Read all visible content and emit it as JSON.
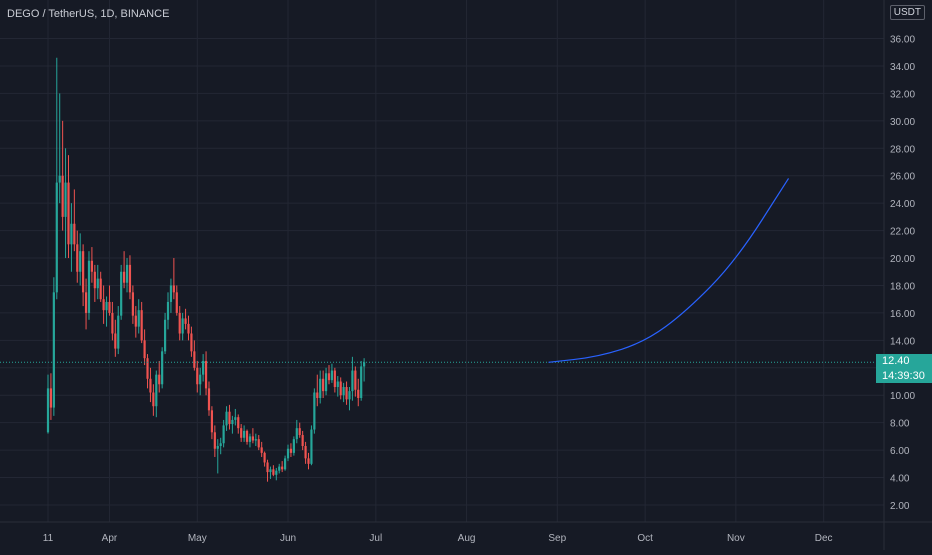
{
  "header": {
    "title": "DEGO / TetherUS, 1D, BINANCE",
    "currency_badge": "USDT"
  },
  "last_price": {
    "value": "12.40",
    "countdown": "14:39:30"
  },
  "colors": {
    "background": "#161a25",
    "grid": "#232734",
    "axis_text": "#b2b5be",
    "up": "#26a69a",
    "down": "#ef5350",
    "projection": "#2962ff",
    "price_line": "#26a69a"
  },
  "chart_data": {
    "type": "candlestick",
    "title": "DEGO / TetherUS, 1D, BINANCE",
    "exchange": "BINANCE",
    "interval": "1D",
    "y_axis": {
      "side": "right",
      "ticks": [
        2,
        4,
        6,
        8,
        10,
        12,
        14,
        16,
        18,
        20,
        22,
        24,
        26,
        28,
        30,
        32,
        34,
        36
      ],
      "tick_labels": [
        "2.00",
        "4.00",
        "6.00",
        "8.00",
        "10.00",
        "12.00",
        "14.00",
        "16.00",
        "18.00",
        "20.00",
        "22.00",
        "24.00",
        "26.00",
        "28.00",
        "30.00",
        "32.00",
        "34.00",
        "36.00"
      ]
    },
    "x_axis": {
      "ticks": [
        "2021-03-11",
        "2021-04-01",
        "2021-05-01",
        "2021-06-01",
        "2021-07-01",
        "2021-08-01",
        "2021-09-01",
        "2021-10-01",
        "2021-11-01",
        "2021-12-01"
      ],
      "tick_labels": [
        "11",
        "Apr",
        "May",
        "Jun",
        "Jul",
        "Aug",
        "Sep",
        "Oct",
        "Nov",
        "Dec"
      ]
    },
    "series": [
      {
        "kind": "ohlc_daily",
        "start_date": "2021-03-11",
        "candles": [
          [
            7.3,
            11.5,
            7.2,
            10.5
          ],
          [
            10.5,
            11.6,
            8.2,
            9.1
          ],
          [
            9.1,
            18.6,
            8.5,
            17.5
          ],
          [
            17.5,
            34.6,
            17.0,
            25.5
          ],
          [
            25.5,
            32.0,
            24.0,
            26.0
          ],
          [
            26.0,
            30.0,
            22.0,
            23.0
          ],
          [
            23.0,
            28.0,
            20.0,
            25.5
          ],
          [
            25.5,
            27.5,
            20.0,
            21.0
          ],
          [
            21.0,
            24.0,
            19.0,
            22.5
          ],
          [
            22.5,
            25.0,
            20.5,
            21.0
          ],
          [
            21.0,
            22.0,
            18.2,
            19.0
          ],
          [
            19.0,
            21.8,
            18.0,
            20.5
          ],
          [
            20.5,
            21.0,
            16.5,
            17.5
          ],
          [
            17.5,
            18.5,
            14.8,
            16.0
          ],
          [
            16.0,
            20.5,
            15.5,
            19.8
          ],
          [
            19.8,
            20.8,
            18.2,
            19.0
          ],
          [
            19.0,
            19.5,
            16.8,
            17.8
          ],
          [
            17.8,
            19.5,
            17.0,
            18.5
          ],
          [
            18.5,
            19.0,
            16.8,
            17.0
          ],
          [
            17.0,
            18.0,
            15.2,
            16.2
          ],
          [
            16.2,
            17.2,
            15.0,
            16.8
          ],
          [
            16.8,
            18.0,
            15.8,
            16.0
          ],
          [
            16.0,
            16.8,
            14.0,
            14.5
          ],
          [
            14.5,
            15.5,
            12.8,
            13.4
          ],
          [
            13.4,
            16.5,
            13.0,
            15.8
          ],
          [
            15.8,
            19.5,
            15.5,
            19.0
          ],
          [
            19.0,
            20.5,
            17.8,
            18.2
          ],
          [
            18.2,
            20.0,
            17.5,
            19.5
          ],
          [
            19.5,
            20.2,
            17.0,
            17.5
          ],
          [
            17.5,
            18.0,
            15.2,
            15.8
          ],
          [
            15.8,
            16.5,
            14.2,
            15.0
          ],
          [
            15.0,
            17.0,
            14.5,
            16.2
          ],
          [
            16.2,
            16.8,
            13.8,
            14.0
          ],
          [
            14.0,
            14.8,
            12.2,
            12.7
          ],
          [
            12.7,
            13.0,
            10.5,
            11.2
          ],
          [
            11.2,
            12.0,
            9.5,
            10.2
          ],
          [
            10.2,
            10.8,
            8.5,
            9.2
          ],
          [
            9.2,
            11.8,
            8.4,
            11.5
          ],
          [
            11.5,
            12.5,
            10.2,
            10.8
          ],
          [
            10.8,
            13.5,
            10.5,
            13.2
          ],
          [
            13.2,
            16.0,
            13.0,
            15.5
          ],
          [
            15.5,
            17.5,
            14.8,
            16.8
          ],
          [
            16.8,
            18.5,
            16.0,
            18.0
          ],
          [
            18.0,
            20.0,
            17.0,
            17.5
          ],
          [
            17.5,
            18.0,
            15.8,
            16.0
          ],
          [
            16.0,
            16.5,
            14.0,
            14.5
          ],
          [
            14.5,
            16.0,
            14.0,
            15.6
          ],
          [
            15.6,
            16.3,
            14.8,
            15.2
          ],
          [
            15.2,
            15.8,
            14.0,
            14.5
          ],
          [
            14.5,
            15.0,
            12.8,
            13.2
          ],
          [
            13.2,
            14.0,
            11.8,
            12.0
          ],
          [
            12.0,
            12.5,
            10.2,
            10.8
          ],
          [
            10.8,
            12.0,
            10.0,
            11.5
          ],
          [
            11.5,
            13.0,
            11.0,
            12.5
          ],
          [
            12.5,
            13.2,
            10.0,
            10.5
          ],
          [
            10.5,
            11.0,
            8.5,
            8.9
          ],
          [
            8.9,
            9.2,
            6.8,
            7.3
          ],
          [
            7.3,
            7.8,
            5.5,
            6.1
          ],
          [
            6.1,
            6.8,
            4.3,
            6.3
          ],
          [
            6.3,
            6.9,
            5.7,
            6.5
          ],
          [
            6.5,
            8.2,
            6.2,
            7.8
          ],
          [
            7.8,
            9.2,
            7.4,
            8.8
          ],
          [
            8.8,
            9.3,
            7.5,
            7.9
          ],
          [
            7.9,
            8.5,
            7.2,
            8.2
          ],
          [
            8.2,
            9.0,
            7.8,
            8.4
          ],
          [
            8.4,
            8.6,
            7.2,
            7.6
          ],
          [
            7.6,
            7.9,
            6.6,
            6.9
          ],
          [
            6.9,
            7.8,
            6.6,
            7.4
          ],
          [
            7.4,
            7.5,
            6.4,
            6.6
          ],
          [
            6.6,
            7.2,
            6.2,
            7.0
          ],
          [
            7.0,
            7.6,
            6.5,
            6.7
          ],
          [
            6.7,
            7.2,
            6.3,
            6.8
          ],
          [
            6.8,
            7.1,
            6.0,
            6.2
          ],
          [
            6.2,
            6.6,
            5.5,
            5.8
          ],
          [
            5.8,
            5.9,
            4.8,
            5.1
          ],
          [
            5.1,
            5.3,
            3.7,
            4.4
          ],
          [
            4.4,
            4.8,
            3.9,
            4.6
          ],
          [
            4.6,
            4.9,
            4.1,
            4.2
          ],
          [
            4.2,
            4.7,
            3.8,
            4.5
          ],
          [
            4.5,
            5.0,
            4.3,
            4.8
          ],
          [
            4.8,
            5.2,
            4.4,
            4.6
          ],
          [
            4.6,
            5.6,
            4.5,
            5.4
          ],
          [
            5.4,
            6.4,
            5.2,
            6.1
          ],
          [
            6.1,
            6.5,
            5.5,
            5.8
          ],
          [
            5.8,
            7.0,
            5.6,
            6.8
          ],
          [
            6.8,
            8.2,
            6.5,
            7.6
          ],
          [
            7.6,
            8.0,
            6.9,
            7.1
          ],
          [
            7.1,
            7.4,
            6.0,
            6.3
          ],
          [
            6.3,
            6.6,
            5.0,
            5.4
          ],
          [
            5.4,
            5.8,
            4.6,
            5.0
          ],
          [
            5.0,
            7.8,
            4.9,
            7.5
          ],
          [
            7.5,
            10.5,
            7.2,
            10.2
          ],
          [
            10.2,
            11.5,
            9.2,
            9.8
          ],
          [
            9.8,
            11.8,
            9.4,
            11.2
          ],
          [
            11.2,
            11.8,
            9.8,
            10.3
          ],
          [
            10.3,
            12.0,
            10.0,
            11.6
          ],
          [
            11.6,
            12.2,
            10.8,
            11.1
          ],
          [
            11.1,
            12.3,
            10.9,
            11.8
          ],
          [
            11.8,
            12.0,
            10.2,
            10.6
          ],
          [
            10.6,
            11.4,
            9.9,
            11.0
          ],
          [
            11.0,
            11.3,
            9.7,
            10.0
          ],
          [
            10.0,
            10.9,
            9.5,
            10.6
          ],
          [
            10.6,
            11.0,
            9.3,
            9.7
          ],
          [
            9.7,
            10.6,
            8.9,
            10.3
          ],
          [
            10.3,
            12.8,
            9.6,
            11.8
          ],
          [
            11.8,
            12.1,
            9.9,
            10.4
          ],
          [
            10.4,
            11.2,
            9.2,
            9.8
          ],
          [
            9.8,
            12.5,
            9.6,
            12.1
          ],
          [
            12.1,
            12.7,
            11.0,
            12.4
          ]
        ]
      },
      {
        "kind": "projection_curve",
        "points": [
          [
            "2021-08-29",
            12.4
          ],
          [
            "2021-09-15",
            12.8
          ],
          [
            "2021-10-01",
            13.9
          ],
          [
            "2021-10-15",
            16.1
          ],
          [
            "2021-11-01",
            19.8
          ],
          [
            "2021-11-19",
            25.8
          ]
        ]
      }
    ],
    "last_price_line": 12.4
  }
}
